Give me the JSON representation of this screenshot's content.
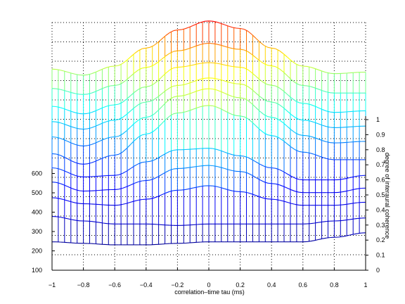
{
  "chart_data": {
    "type": "surface",
    "xlabel": "correlation–time tau (ms)",
    "zlabel": "degree of interaural coherence",
    "x_ticks": [
      "−1",
      "−0.8",
      "−0.6",
      "−0.4",
      "−0.2",
      "0",
      "0.2",
      "0.4",
      "0.6",
      "0.8",
      "1"
    ],
    "y_ticks": [
      "100",
      "200",
      "300",
      "400",
      "500",
      "600"
    ],
    "z_ticks": [
      "0",
      "0.1",
      "0.2",
      "0.3",
      "0.4",
      "0.5",
      "0.6",
      "0.7",
      "0.8",
      "0.9",
      "1"
    ],
    "xlim": [
      -1,
      1
    ],
    "ylim": [
      100,
      600
    ],
    "zlim": [
      0,
      1
    ],
    "grid": true,
    "colormap": [
      "#000080",
      "#0000ff",
      "#00ffff",
      "#ffff00",
      "#ff0000"
    ],
    "curves": [
      {
        "y": 200,
        "z": [
          0.06,
          0.05,
          0.04,
          0.04,
          0.05,
          0.06,
          0.06,
          0.06,
          0.06,
          0.09,
          0.12
        ]
      },
      {
        "y": 230,
        "z": [
          0.19,
          0.16,
          0.14,
          0.14,
          0.13,
          0.14,
          0.14,
          0.14,
          0.14,
          0.16,
          0.18
        ]
      },
      {
        "y": 280,
        "z": [
          0.25,
          0.21,
          0.2,
          0.24,
          0.3,
          0.33,
          0.29,
          0.24,
          0.2,
          0.2,
          0.22
        ]
      },
      {
        "y": 330,
        "z": [
          0.29,
          0.23,
          0.24,
          0.3,
          0.38,
          0.4,
          0.36,
          0.28,
          0.22,
          0.22,
          0.25
        ]
      },
      {
        "y": 380,
        "z": [
          0.32,
          0.26,
          0.27,
          0.36,
          0.44,
          0.45,
          0.4,
          0.32,
          0.24,
          0.24,
          0.27
        ]
      },
      {
        "y": 430,
        "z": [
          0.35,
          0.28,
          0.34,
          0.48,
          0.62,
          0.67,
          0.6,
          0.47,
          0.36,
          0.31,
          0.31
        ]
      },
      {
        "y": 470,
        "z": [
          0.41,
          0.35,
          0.41,
          0.54,
          0.68,
          0.73,
          0.67,
          0.54,
          0.42,
          0.37,
          0.38
        ]
      },
      {
        "y": 510,
        "z": [
          0.46,
          0.41,
          0.47,
          0.59,
          0.7,
          0.75,
          0.71,
          0.59,
          0.47,
          0.42,
          0.43
        ]
      },
      {
        "y": 550,
        "z": [
          0.51,
          0.46,
          0.52,
          0.64,
          0.77,
          0.8,
          0.77,
          0.65,
          0.53,
          0.47,
          0.48
        ]
      },
      {
        "y": 580,
        "z": [
          0.59,
          0.55,
          0.61,
          0.73,
          0.84,
          0.89,
          0.85,
          0.74,
          0.61,
          0.56,
          0.56
        ]
      },
      {
        "y": 610,
        "z": [
          0.68,
          0.64,
          0.7,
          0.82,
          0.94,
          1.0,
          0.95,
          0.82,
          0.7,
          0.65,
          0.66
        ]
      }
    ]
  }
}
